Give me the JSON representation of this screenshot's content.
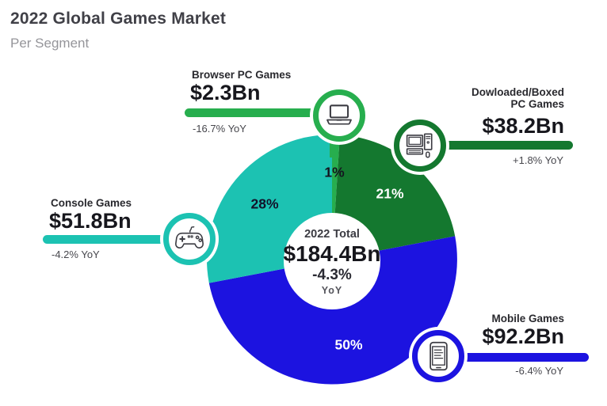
{
  "header": {
    "title": "2022 Global Games Market",
    "subtitle": "Per Segment"
  },
  "center": {
    "label": "2022 Total",
    "value": "$184.4Bn",
    "change": "-4.3%",
    "change_unit": "YoY"
  },
  "callouts": {
    "browser": {
      "label": "Browser PC Games",
      "value": "$2.3Bn",
      "yoy": "-16.7% YoY"
    },
    "downloaded": {
      "label_line1": "Dowloaded/Boxed",
      "label_line2": "PC Games",
      "value": "$38.2Bn",
      "yoy": "+1.8% YoY"
    },
    "console": {
      "label": "Console Games",
      "value": "$51.8Bn",
      "yoy": "-4.2% YoY"
    },
    "mobile": {
      "label": "Mobile Games",
      "value": "$92.2Bn",
      "yoy": "-6.4% YoY"
    }
  },
  "chart_data": {
    "type": "pie",
    "variant": "donut",
    "title": "2022 Global Games Market",
    "subtitle": "Per Segment",
    "total": {
      "label": "2022 Total",
      "value_bn_usd": 184.4,
      "yoy_pct": -4.3
    },
    "start_angle_deg_clockwise_from_top": 0,
    "segments": [
      {
        "key": "browser",
        "name": "Browser PC Games",
        "share_pct": 1,
        "value_bn_usd": 2.3,
        "value_label": "$2.3Bn",
        "yoy_pct": -16.7,
        "yoy_label": "-16.7% YoY",
        "color": "#27ae4e",
        "pct_label": "1%",
        "pct_label_color": "#14141f",
        "icon": "laptop-icon"
      },
      {
        "key": "downloaded",
        "name": "Dowloaded/Boxed PC Games",
        "share_pct": 21,
        "value_bn_usd": 38.2,
        "value_label": "$38.2Bn",
        "yoy_pct": 1.8,
        "yoy_label": "+1.8% YoY",
        "color": "#14782f",
        "pct_label": "21%",
        "pct_label_color": "#ffffff",
        "icon": "desktop-computer-icon"
      },
      {
        "key": "mobile",
        "name": "Mobile Games",
        "share_pct": 50,
        "value_bn_usd": 92.2,
        "value_label": "$92.2Bn",
        "yoy_pct": -6.4,
        "yoy_label": "-6.4% YoY",
        "color": "#1c13e0",
        "pct_label": "50%",
        "pct_label_color": "#ffffff",
        "icon": "smartphone-icon"
      },
      {
        "key": "console",
        "name": "Console Games",
        "share_pct": 28,
        "value_bn_usd": 51.8,
        "value_label": "$51.8Bn",
        "yoy_pct": -4.2,
        "yoy_label": "-4.2% YoY",
        "color": "#1cc2b2",
        "pct_label": "28%",
        "pct_label_color": "#12122a",
        "icon": "gamepad-icon"
      }
    ],
    "hole_color": "#ffffff",
    "legend": "callout labels around donut"
  }
}
